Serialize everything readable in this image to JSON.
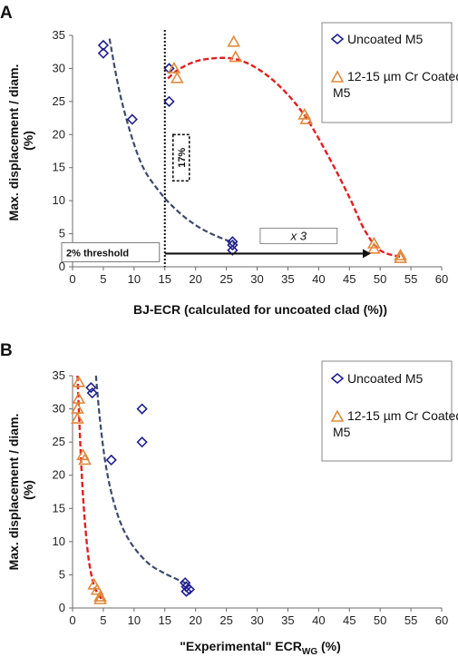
{
  "colors": {
    "uncoated": "#1f1f8f",
    "coated": "#e08a3c",
    "uncoated_fit": "#3d4a6b",
    "coated_fit": "#e02020",
    "axis": "#6b6b6b"
  },
  "chart_data": [
    {
      "panel": "A",
      "type": "scatter",
      "xlabel": "BJ-ECR (calculated for uncoated clad (%))",
      "ylabel": "Max. displacement / diam. (%)",
      "xlim": [
        0,
        60
      ],
      "ylim": [
        0,
        35
      ],
      "xticks": [
        "0",
        "5",
        "10",
        "15",
        "20",
        "25",
        "30",
        "35",
        "40",
        "45",
        "50",
        "55",
        "60"
      ],
      "yticks": [
        "0",
        "5",
        "10",
        "15",
        "20",
        "25",
        "30",
        "35"
      ],
      "legend": [
        "Uncoated M5",
        "12-15 µm Cr Coated M5"
      ],
      "legend_position": "top-right",
      "series": [
        {
          "name": "Uncoated M5",
          "marker": "diamond",
          "points": [
            [
              5,
              33.5
            ],
            [
              5,
              32.3
            ],
            [
              9.7,
              22.3
            ],
            [
              15.7,
              30
            ],
            [
              15.7,
              25
            ],
            [
              26,
              3.8
            ],
            [
              26,
              3.3
            ],
            [
              26,
              2.5
            ]
          ],
          "fit": [
            [
              6,
              34.5
            ],
            [
              8,
              25
            ],
            [
              11,
              16
            ],
            [
              14,
              11.5
            ],
            [
              17,
              8.5
            ],
            [
              20,
              6.3
            ],
            [
              23,
              4.8
            ],
            [
              26.5,
              3.5
            ]
          ]
        },
        {
          "name": "12-15 µm Cr Coated M5",
          "marker": "triangle",
          "points": [
            [
              16.5,
              30
            ],
            [
              17,
              28.5
            ],
            [
              26.2,
              34
            ],
            [
              26.5,
              31.7
            ],
            [
              37.7,
              23
            ],
            [
              38,
              22.3
            ],
            [
              49,
              3.5
            ],
            [
              49,
              2.7
            ],
            [
              53.3,
              1.7
            ],
            [
              53.3,
              1.3
            ]
          ],
          "fit": [
            [
              15.5,
              28.5
            ],
            [
              17.5,
              30
            ],
            [
              21,
              31.3
            ],
            [
              26,
              31.5
            ],
            [
              30,
              30
            ],
            [
              34,
              27
            ],
            [
              38,
              22.5
            ],
            [
              42,
              16
            ],
            [
              45,
              10.5
            ],
            [
              47.5,
              5.5
            ],
            [
              50,
              2.5
            ],
            [
              53.3,
              1.5
            ]
          ]
        }
      ],
      "annotations": {
        "threshold_label": "2% threshold",
        "bracket_label": "17%",
        "multiplier_label": "x 3",
        "vline_x": 15,
        "threshold_y": 2,
        "arrow_from_x": 15,
        "arrow_to_x": 48.5,
        "bracket_y_range": [
          13,
          20
        ]
      }
    },
    {
      "panel": "B",
      "type": "scatter",
      "xlabel_main": "\"Experimental\" ECR",
      "xlabel_sub": "WG",
      "xlabel_tail": " (%)",
      "ylabel": "Max. displacement / diam. (%)",
      "xlim": [
        0,
        60
      ],
      "ylim": [
        0,
        35
      ],
      "xticks": [
        "0",
        "5",
        "10",
        "15",
        "20",
        "25",
        "30",
        "35",
        "40",
        "45",
        "50",
        "55",
        "60"
      ],
      "yticks": [
        "0",
        "5",
        "10",
        "15",
        "20",
        "25",
        "30",
        "35"
      ],
      "legend": [
        "Uncoated M5",
        "12-15 µm Cr Coated M5"
      ],
      "legend_position": "top-right",
      "series": [
        {
          "name": "Uncoated M5",
          "marker": "diamond",
          "points": [
            [
              3,
              33.2
            ],
            [
              3.2,
              32.4
            ],
            [
              6.3,
              22.3
            ],
            [
              11.3,
              30
            ],
            [
              11.3,
              25
            ],
            [
              18.3,
              3.8
            ],
            [
              18.5,
              3.2
            ],
            [
              18.5,
              2.5
            ],
            [
              19,
              2.8
            ]
          ],
          "fit": [
            [
              3.8,
              35
            ],
            [
              4.5,
              28
            ],
            [
              5.5,
              21
            ],
            [
              7,
              15
            ],
            [
              9,
              10.5
            ],
            [
              12,
              7
            ],
            [
              15,
              5.2
            ],
            [
              19,
              3.5
            ]
          ]
        },
        {
          "name": "12-15 µm Cr Coated M5",
          "marker": "triangle",
          "points": [
            [
              1,
              34
            ],
            [
              1,
              31.5
            ],
            [
              0.8,
              30
            ],
            [
              0.8,
              28.5
            ],
            [
              1.7,
              23
            ],
            [
              2,
              22.3
            ],
            [
              3.5,
              3.5
            ],
            [
              4,
              2.7
            ],
            [
              4.5,
              1.7
            ],
            [
              4.5,
              1.3
            ]
          ],
          "fit": [
            [
              0.8,
              35
            ],
            [
              1.1,
              28
            ],
            [
              1.5,
              20
            ],
            [
              2,
              13
            ],
            [
              2.6,
              7.5
            ],
            [
              3.3,
              4
            ],
            [
              4,
              2.3
            ],
            [
              4.7,
              1.4
            ]
          ]
        }
      ]
    }
  ]
}
